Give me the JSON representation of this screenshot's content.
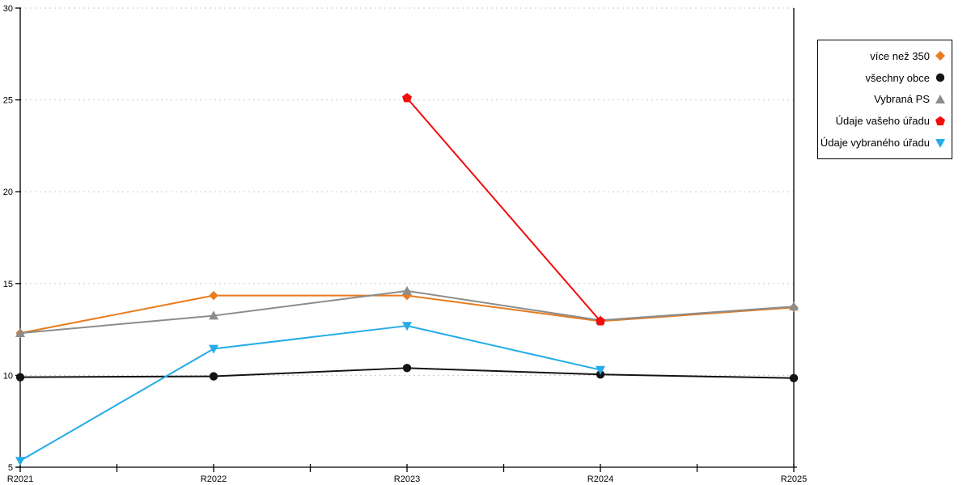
{
  "page": {
    "background": "#ffffff"
  },
  "chart_data": {
    "type": "line",
    "title": "",
    "xlabel": "",
    "ylabel": "",
    "categories": [
      "R2021",
      "R2022",
      "R2023",
      "R2024",
      "R2025"
    ],
    "series": [
      {
        "name": "více než 350",
        "color": "#E87C1E",
        "marker": "diamond",
        "values": [
          12.3,
          14.35,
          14.35,
          12.95,
          13.7
        ]
      },
      {
        "name": "všechny obce",
        "color": "#141414",
        "marker": "circle",
        "values": [
          9.9,
          9.95,
          10.4,
          10.05,
          9.85
        ]
      },
      {
        "name": "Vybraná PS",
        "color": "#8C8C8C",
        "marker": "triangle-up",
        "values": [
          12.3,
          13.25,
          14.6,
          13.0,
          13.75
        ]
      },
      {
        "name": "Údaje vašeho úřadu",
        "color": "#F20D0D",
        "marker": "pentagon",
        "values": [
          null,
          null,
          25.1,
          12.95,
          null
        ]
      },
      {
        "name": "Údaje vybraného úřadu",
        "color": "#24ACE8",
        "marker": "triangle-down",
        "values": [
          5.35,
          11.45,
          12.7,
          10.3,
          null
        ]
      }
    ],
    "ylim": [
      5,
      30
    ],
    "yticks": [
      5,
      10,
      15,
      20,
      25,
      30
    ],
    "grid": "horizontal-dotted",
    "gridline_color": "#c8c8c8",
    "axis_color": "#000000",
    "legend_position": "right-outside"
  }
}
